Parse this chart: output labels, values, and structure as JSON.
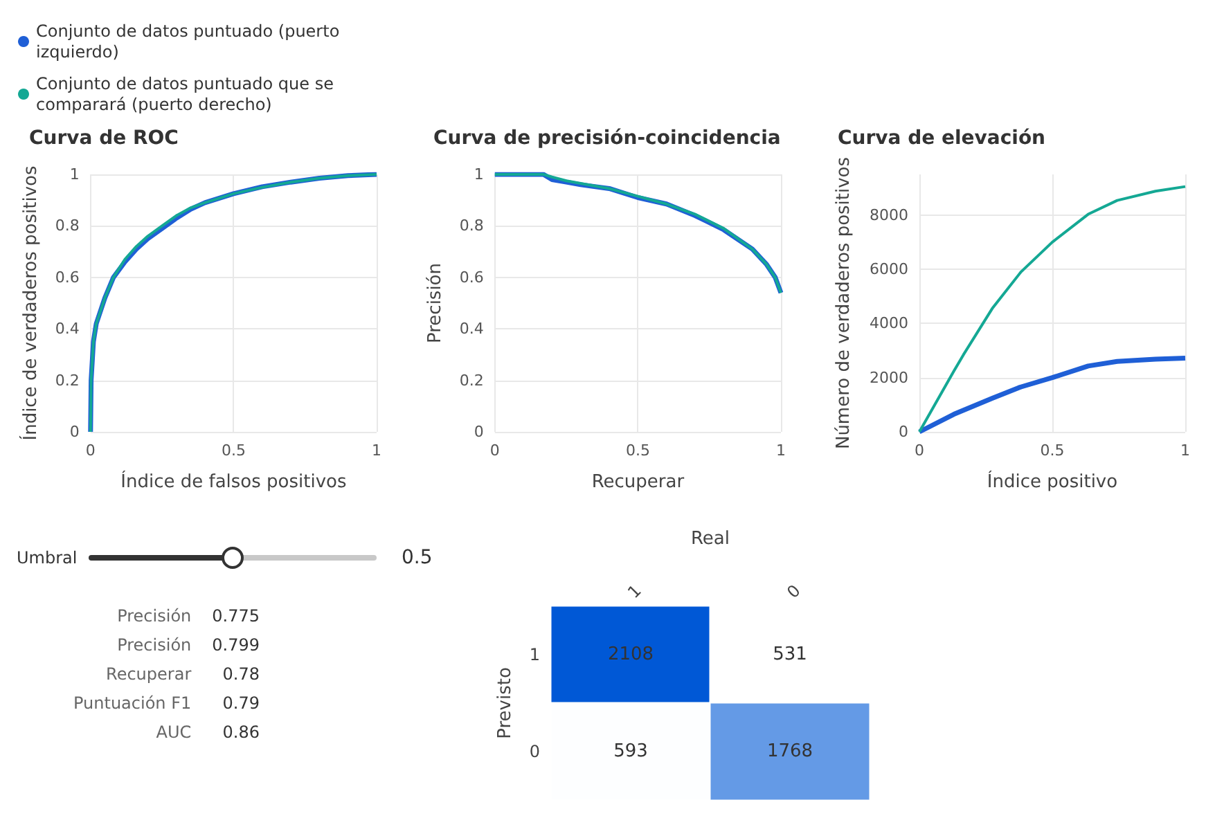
{
  "chart_data": [
    {
      "type": "line",
      "title": "Curva de ROC",
      "xlabel": "Índice de falsos positivos",
      "ylabel": "Índice de verdaderos positivos",
      "xlim": [
        0,
        1
      ],
      "ylim": [
        0,
        1
      ],
      "xticks": [
        0,
        0.5,
        1
      ],
      "yticks": [
        0,
        0.2,
        0.4,
        0.6,
        0.8,
        1
      ],
      "grid": true,
      "legend": "top left",
      "x": [
        0,
        0.002,
        0.01,
        0.02,
        0.05,
        0.08,
        0.12,
        0.16,
        0.2,
        0.25,
        0.3,
        0.35,
        0.4,
        0.5,
        0.6,
        0.7,
        0.8,
        0.9,
        1
      ],
      "series": [
        {
          "name": "Conjunto de datos puntuado (puerto izquierdo)",
          "color": "#1f5fd6",
          "values": [
            0,
            0.2,
            0.35,
            0.42,
            0.52,
            0.6,
            0.66,
            0.71,
            0.75,
            0.79,
            0.83,
            0.865,
            0.89,
            0.925,
            0.952,
            0.97,
            0.985,
            0.995,
            1
          ]
        },
        {
          "name": "Conjunto de datos puntuado que se comparará (puerto derecho)",
          "color": "#14a894",
          "values": [
            0,
            0.2,
            0.35,
            0.42,
            0.52,
            0.6,
            0.67,
            0.72,
            0.76,
            0.8,
            0.84,
            0.87,
            0.89,
            0.925,
            0.95,
            0.97,
            0.985,
            0.995,
            1
          ]
        }
      ]
    },
    {
      "type": "line",
      "title": "Curva de precisión-coincidencia",
      "xlabel": "Recuperar",
      "ylabel": "Precisión",
      "xlim": [
        0,
        1
      ],
      "ylim": [
        0,
        1
      ],
      "xticks": [
        0,
        0.5,
        1
      ],
      "yticks": [
        0,
        0.2,
        0.4,
        0.6,
        0.8,
        1
      ],
      "grid": true,
      "x": [
        0,
        0.17,
        0.2,
        0.25,
        0.3,
        0.4,
        0.5,
        0.6,
        0.7,
        0.8,
        0.9,
        0.95,
        0.98,
        1
      ],
      "series": [
        {
          "color": "#1f5fd6",
          "values": [
            1,
            1,
            0.98,
            0.97,
            0.96,
            0.945,
            0.91,
            0.885,
            0.84,
            0.785,
            0.71,
            0.65,
            0.6,
            0.54
          ]
        },
        {
          "color": "#14a894",
          "values": [
            1,
            1,
            0.99,
            0.975,
            0.965,
            0.945,
            0.915,
            0.885,
            0.845,
            0.79,
            0.71,
            0.65,
            0.6,
            0.54
          ]
        }
      ]
    },
    {
      "type": "line",
      "title": "Curva de elevación",
      "xlabel": "Índice positivo",
      "ylabel": "Número de verdaderos positivos",
      "xlim": [
        0,
        1
      ],
      "ylim": [
        0,
        9500
      ],
      "xticks": [
        0,
        0.5,
        1
      ],
      "yticks": [
        0,
        2000,
        4000,
        6000,
        8000
      ],
      "grid": true,
      "x": [
        0,
        0.13,
        0.166,
        0.274,
        0.374,
        0.383,
        0.5,
        0.635,
        0.744,
        0.888,
        1
      ],
      "series": [
        {
          "color": "#1f5fd6",
          "values": [
            0,
            650,
            800,
            1240,
            1630,
            1660,
            2000,
            2430,
            2600,
            2680,
            2720
          ]
        },
        {
          "color": "#14a894",
          "values": [
            0,
            2250,
            2850,
            4550,
            5800,
            5910,
            7000,
            8030,
            8540,
            8880,
            9050
          ]
        }
      ]
    },
    {
      "type": "other",
      "title": "Umbral",
      "annotations": [
        "0.5"
      ],
      "categories": [
        "Precisión",
        "Precisión",
        "Recuperar",
        "Puntuación F1",
        "AUC"
      ],
      "values": [
        0.775,
        0.799,
        0.78,
        0.79,
        0.86
      ],
      "data_labels": true
    },
    {
      "type": "heatmap",
      "xlabel": "Real",
      "ylabel": "Previsto",
      "categories": [
        "1",
        "0"
      ],
      "y_categories": [
        "1",
        "0"
      ],
      "cells": [
        [
          2108,
          531
        ],
        [
          593,
          1768
        ]
      ],
      "data_labels": true
    }
  ]
}
